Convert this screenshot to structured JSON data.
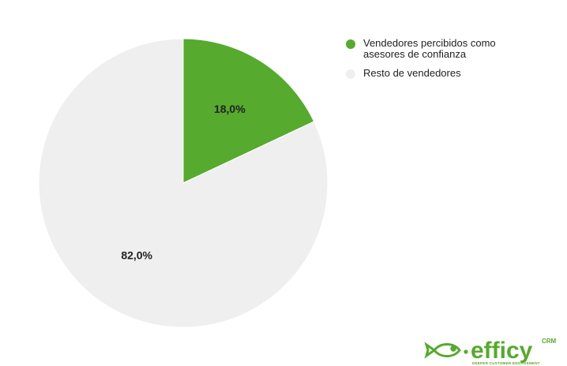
{
  "chart_data": {
    "type": "pie",
    "categories": [
      "Vendedores percibidos como asesores de confianza",
      "Resto de vendedores"
    ],
    "values": [
      18.0,
      82.0
    ],
    "data_labels": [
      "18,0%",
      "82,0%"
    ],
    "colors": [
      "#56aa2d",
      "#efefef"
    ],
    "legend_position": "right"
  },
  "legend": {
    "items": [
      {
        "label": "Vendedores percibidos como asesores de confianza",
        "color": "#56aa2d"
      },
      {
        "label": "Resto de vendedores",
        "color": "#efefef"
      }
    ]
  },
  "logo": {
    "name": "efficy",
    "superscript": "CRM",
    "tagline": "DEEPER CUSTOMER ENGAGEMENT",
    "color": "#56aa2d"
  }
}
